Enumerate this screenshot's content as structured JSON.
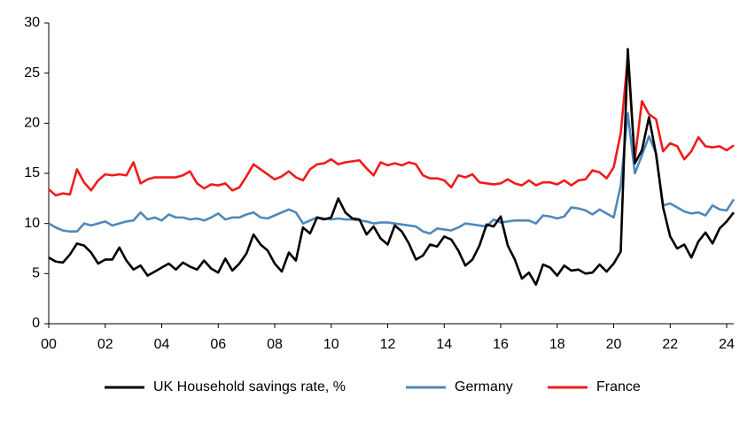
{
  "chart_data": {
    "type": "line",
    "x": [
      0,
      0.25,
      0.5,
      0.75,
      1,
      1.25,
      1.5,
      1.75,
      2,
      2.25,
      2.5,
      2.75,
      3,
      3.25,
      3.5,
      3.75,
      4,
      4.25,
      4.5,
      4.75,
      5,
      5.25,
      5.5,
      5.75,
      6,
      6.25,
      6.5,
      6.75,
      7,
      7.25,
      7.5,
      7.75,
      8,
      8.25,
      8.5,
      8.75,
      9,
      9.25,
      9.5,
      9.75,
      10,
      10.25,
      10.5,
      10.75,
      11,
      11.25,
      11.5,
      11.75,
      12,
      12.25,
      12.5,
      12.75,
      13,
      13.25,
      13.5,
      13.75,
      14,
      14.25,
      14.5,
      14.75,
      15,
      15.25,
      15.5,
      15.75,
      16,
      16.25,
      16.5,
      16.75,
      17,
      17.25,
      17.5,
      17.75,
      18,
      18.25,
      18.5,
      18.75,
      19,
      19.25,
      19.5,
      19.75,
      20,
      20.25,
      20.5,
      20.75,
      21,
      21.25,
      21.5,
      21.75,
      22,
      22.25,
      22.5,
      22.75,
      23,
      23.25,
      23.5,
      23.75,
      24,
      24.25
    ],
    "series": [
      {
        "name": "UK Household savings rate, %",
        "color": "#000000",
        "values": [
          6.6,
          6.2,
          6.1,
          6.9,
          8.0,
          7.8,
          7.1,
          6.0,
          6.4,
          6.4,
          7.6,
          6.3,
          5.4,
          5.8,
          4.8,
          5.2,
          5.6,
          6.0,
          5.4,
          6.1,
          5.7,
          5.4,
          6.3,
          5.5,
          5.1,
          6.5,
          5.3,
          6.0,
          7.0,
          8.9,
          7.9,
          7.3,
          6.0,
          5.2,
          7.1,
          6.3,
          9.6,
          9.0,
          10.6,
          10.4,
          10.6,
          12.5,
          11.1,
          10.5,
          10.4,
          8.9,
          9.7,
          8.5,
          7.9,
          9.8,
          9.2,
          8.0,
          6.4,
          6.8,
          7.9,
          7.7,
          8.7,
          8.4,
          7.3,
          5.8,
          6.4,
          7.8,
          9.9,
          9.7,
          10.7,
          7.8,
          6.4,
          4.5,
          5.1,
          3.9,
          5.9,
          5.6,
          4.8,
          5.8,
          5.3,
          5.4,
          5.0,
          5.1,
          5.9,
          5.2,
          6.0,
          7.2,
          27.4,
          16.0,
          17.3,
          20.6,
          16.9,
          11.6,
          8.7,
          7.5,
          7.9,
          6.6,
          8.2,
          9.1,
          8.0,
          9.5,
          10.2,
          11.1
        ]
      },
      {
        "name": "Germany",
        "color": "#4f88bb",
        "values": [
          10.0,
          9.6,
          9.3,
          9.2,
          9.2,
          10.0,
          9.8,
          10.0,
          10.2,
          9.8,
          10.0,
          10.2,
          10.3,
          11.1,
          10.4,
          10.6,
          10.3,
          10.9,
          10.6,
          10.6,
          10.4,
          10.5,
          10.3,
          10.6,
          11.0,
          10.4,
          10.6,
          10.6,
          10.9,
          11.1,
          10.6,
          10.5,
          10.8,
          11.1,
          11.4,
          11.1,
          10.0,
          10.3,
          10.6,
          10.5,
          10.4,
          10.5,
          10.4,
          10.4,
          10.3,
          10.2,
          10.0,
          10.1,
          10.1,
          10.0,
          9.9,
          9.8,
          9.7,
          9.2,
          9.0,
          9.5,
          9.4,
          9.3,
          9.6,
          10.0,
          9.9,
          9.8,
          9.7,
          10.4,
          10.1,
          10.2,
          10.3,
          10.3,
          10.3,
          10.0,
          10.8,
          10.7,
          10.5,
          10.7,
          11.6,
          11.5,
          11.3,
          10.9,
          11.4,
          11.0,
          10.6,
          13.8,
          21.0,
          15.0,
          16.8,
          18.7,
          17.0,
          11.8,
          12.0,
          11.6,
          11.2,
          11.0,
          11.1,
          10.8,
          11.8,
          11.4,
          11.3,
          12.4
        ]
      },
      {
        "name": "France",
        "color": "#ee1c1c",
        "values": [
          13.4,
          12.8,
          13.0,
          12.9,
          15.4,
          14.1,
          13.3,
          14.3,
          14.9,
          14.8,
          14.9,
          14.8,
          16.1,
          14.0,
          14.4,
          14.6,
          14.6,
          14.6,
          14.6,
          14.8,
          15.2,
          14.0,
          13.5,
          13.9,
          13.8,
          14.0,
          13.3,
          13.6,
          14.7,
          15.9,
          15.4,
          14.9,
          14.4,
          14.7,
          15.2,
          14.6,
          14.3,
          15.4,
          15.9,
          16.0,
          16.4,
          15.9,
          16.1,
          16.2,
          16.3,
          15.5,
          14.8,
          16.1,
          15.8,
          16.0,
          15.8,
          16.1,
          15.9,
          14.8,
          14.5,
          14.5,
          14.3,
          13.6,
          14.8,
          14.6,
          14.9,
          14.1,
          14.0,
          13.9,
          14.0,
          14.4,
          14.0,
          13.8,
          14.3,
          13.8,
          14.1,
          14.1,
          13.9,
          14.3,
          13.8,
          14.3,
          14.4,
          15.3,
          15.1,
          14.5,
          15.6,
          19.0,
          26.6,
          16.4,
          22.2,
          20.9,
          20.4,
          17.2,
          18.0,
          17.7,
          16.4,
          17.2,
          18.6,
          17.7,
          17.6,
          17.7,
          17.3,
          17.8
        ]
      }
    ],
    "xlim": [
      0,
      24.25
    ],
    "xticks": [
      {
        "value": 0,
        "label": "00"
      },
      {
        "value": 2,
        "label": "02"
      },
      {
        "value": 4,
        "label": "04"
      },
      {
        "value": 6,
        "label": "06"
      },
      {
        "value": 8,
        "label": "08"
      },
      10,
      12,
      14,
      16,
      18,
      20,
      22,
      24
    ],
    "ylim": [
      0,
      30
    ],
    "yticks": [
      {
        "value": 0,
        "label": "0"
      },
      5,
      10,
      15,
      20,
      25,
      30
    ],
    "legend": "bottom"
  }
}
